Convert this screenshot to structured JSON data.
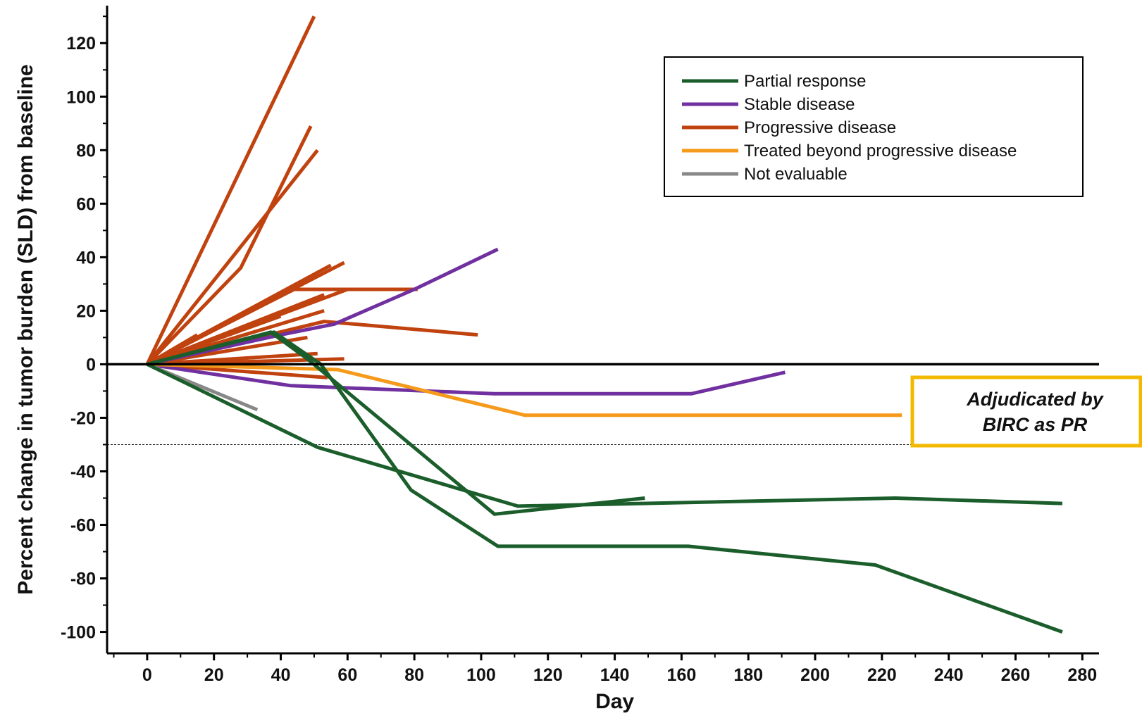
{
  "chart_data": {
    "type": "line",
    "xlabel": "Day",
    "ylabel": "Percent change in tumor burden (SLD) from baseline",
    "xlim": [
      -12,
      285
    ],
    "ylim": [
      -108,
      134
    ],
    "xticks": [
      0,
      20,
      40,
      60,
      80,
      100,
      120,
      140,
      160,
      180,
      200,
      220,
      240,
      260,
      280
    ],
    "yticks": [
      -100,
      -80,
      -60,
      -40,
      -20,
      0,
      20,
      40,
      60,
      80,
      100,
      120
    ],
    "zero_line": 0,
    "threshold_line": -30,
    "grid": false,
    "legend_position": "top-right",
    "categories": [
      {
        "key": "pr",
        "label": "Partial response",
        "color": "#1b5e2b"
      },
      {
        "key": "sd",
        "label": "Stable disease",
        "color": "#7030a0"
      },
      {
        "key": "pd",
        "label": "Progressive disease",
        "color": "#c0420e"
      },
      {
        "key": "tbpd",
        "label": "Treated beyond progressive disease",
        "color": "#f59a1b"
      },
      {
        "key": "ne",
        "label": "Not evaluable",
        "color": "#888888"
      }
    ],
    "annotation": {
      "lines": [
        "Adjudicated by",
        "BIRC as PR"
      ],
      "border_color": "#f3b800"
    },
    "series": [
      {
        "category": "pd",
        "points": [
          [
            0,
            0
          ],
          [
            50,
            130
          ]
        ]
      },
      {
        "category": "pd",
        "points": [
          [
            0,
            0
          ],
          [
            28,
            36
          ],
          [
            49,
            89
          ]
        ]
      },
      {
        "category": "pd",
        "points": [
          [
            0,
            0
          ],
          [
            51,
            80
          ]
        ]
      },
      {
        "category": "pd",
        "points": [
          [
            0,
            0
          ],
          [
            55,
            37
          ]
        ]
      },
      {
        "category": "pd",
        "points": [
          [
            0,
            0
          ],
          [
            59,
            38
          ]
        ]
      },
      {
        "category": "pd",
        "points": [
          [
            0,
            0
          ],
          [
            46,
            30
          ]
        ]
      },
      {
        "category": "pd",
        "points": [
          [
            0,
            0
          ],
          [
            44,
            28
          ],
          [
            81,
            28
          ]
        ]
      },
      {
        "category": "pd",
        "points": [
          [
            0,
            0
          ],
          [
            60,
            28
          ]
        ]
      },
      {
        "category": "pd",
        "points": [
          [
            0,
            0
          ],
          [
            53,
            26
          ]
        ]
      },
      {
        "category": "pd",
        "points": [
          [
            0,
            0
          ],
          [
            46,
            22
          ]
        ]
      },
      {
        "category": "pd",
        "points": [
          [
            0,
            0
          ],
          [
            53,
            20
          ]
        ]
      },
      {
        "category": "pd",
        "points": [
          [
            0,
            0
          ],
          [
            40,
            18
          ]
        ]
      },
      {
        "category": "pd",
        "points": [
          [
            0,
            0
          ],
          [
            53,
            16
          ],
          [
            99,
            11
          ]
        ]
      },
      {
        "category": "pd",
        "points": [
          [
            0,
            0
          ],
          [
            15,
            11
          ]
        ]
      },
      {
        "category": "pd",
        "points": [
          [
            0,
            0
          ],
          [
            48,
            10
          ]
        ]
      },
      {
        "category": "pd",
        "points": [
          [
            0,
            0
          ],
          [
            51,
            4
          ]
        ]
      },
      {
        "category": "pd",
        "points": [
          [
            0,
            0
          ],
          [
            59,
            2
          ]
        ]
      },
      {
        "category": "pd",
        "points": [
          [
            0,
            0
          ],
          [
            54,
            -5
          ]
        ]
      },
      {
        "category": "sd",
        "points": [
          [
            0,
            0
          ],
          [
            40,
            11
          ],
          [
            56,
            15
          ],
          [
            80,
            28
          ],
          [
            105,
            43
          ]
        ]
      },
      {
        "category": "sd",
        "points": [
          [
            0,
            0
          ],
          [
            43,
            -8
          ],
          [
            104,
            -11
          ],
          [
            163,
            -11
          ],
          [
            191,
            -3
          ]
        ]
      },
      {
        "category": "tbpd",
        "points": [
          [
            0,
            0
          ],
          [
            57,
            -2
          ],
          [
            113,
            -19
          ],
          [
            168,
            -19
          ],
          [
            226,
            -19
          ]
        ]
      },
      {
        "category": "ne",
        "points": [
          [
            0,
            0
          ],
          [
            33,
            -17
          ]
        ]
      },
      {
        "category": "pr",
        "points": [
          [
            0,
            0
          ],
          [
            38,
            12
          ],
          [
            52,
            0
          ],
          [
            79,
            -47
          ],
          [
            105,
            -68
          ],
          [
            162,
            -68
          ],
          [
            218,
            -75
          ],
          [
            274,
            -100
          ]
        ]
      },
      {
        "category": "pr",
        "points": [
          [
            0,
            0
          ],
          [
            37,
            12
          ],
          [
            48,
            2
          ],
          [
            104,
            -56
          ],
          [
            149,
            -50
          ]
        ]
      },
      {
        "category": "pr",
        "points": [
          [
            0,
            0
          ],
          [
            51,
            -31
          ],
          [
            111,
            -53
          ],
          [
            224,
            -50
          ],
          [
            274,
            -52
          ]
        ]
      }
    ]
  }
}
